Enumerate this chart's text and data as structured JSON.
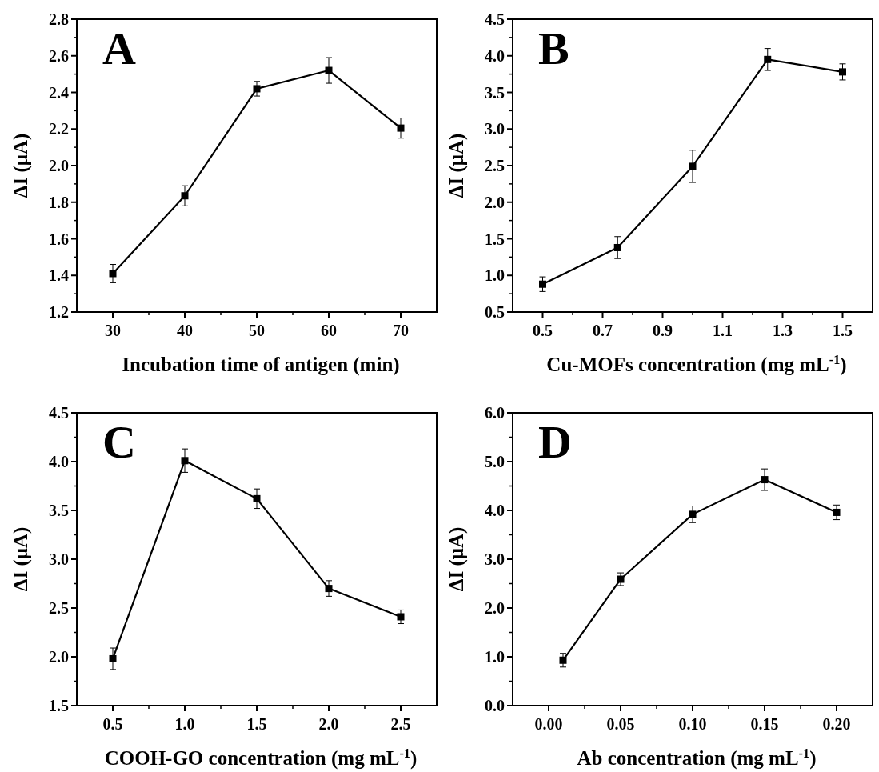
{
  "chart_data": [
    {
      "type": "line",
      "title": "A",
      "xlabel": "Incubation time of antigen (min)",
      "ylabel": "ΔI (μA)",
      "x": [
        30,
        40,
        50,
        60,
        70
      ],
      "series": [
        {
          "color": "#000000",
          "values": [
            1.41,
            1.835,
            2.42,
            2.52,
            2.205
          ],
          "errors": [
            0.05,
            0.055,
            0.04,
            0.07,
            0.055
          ]
        }
      ],
      "xlim": [
        25,
        75
      ],
      "ylim": [
        1.2,
        2.8
      ],
      "xticks": [
        30,
        40,
        50,
        60,
        70
      ],
      "yticks": [
        1.2,
        1.4,
        1.6,
        1.8,
        {
          "value": 2,
          "label": "2.0"
        },
        2.2,
        2.4,
        2.6,
        2.8
      ],
      "marker": "square",
      "line_style": "solid"
    },
    {
      "type": "line",
      "title": "B",
      "xlabel": "Cu-MOFs concentration (mg mL$^{-1}$)",
      "ylabel": "ΔI (μA)",
      "x": [
        0.5,
        0.75,
        1.0,
        1.25,
        1.5
      ],
      "series": [
        {
          "color": "#000000",
          "values": [
            0.88,
            1.38,
            2.49,
            3.95,
            3.78
          ],
          "errors": [
            0.1,
            0.15,
            0.22,
            0.15,
            0.11
          ]
        }
      ],
      "xlim": [
        0.4,
        1.6
      ],
      "ylim": [
        0.5,
        4.5
      ],
      "xticks": [
        0.5,
        0.7,
        0.9,
        1.1,
        1.3,
        1.5
      ],
      "yticks": [
        0.5,
        {
          "value": 1,
          "label": "1.0"
        },
        1.5,
        {
          "value": 2,
          "label": "2.0"
        },
        2.5,
        {
          "value": 3,
          "label": "3.0"
        },
        3.5,
        {
          "value": 4,
          "label": "4.0"
        },
        4.5
      ],
      "marker": "square",
      "line_style": "solid"
    },
    {
      "type": "line",
      "title": "C",
      "xlabel": "COOH-GO concentration (mg mL$^{-1}$)",
      "ylabel": "ΔI (μA)",
      "x": [
        0.5,
        1.0,
        1.5,
        2.0,
        2.5
      ],
      "series": [
        {
          "color": "#000000",
          "values": [
            1.98,
            4.01,
            3.62,
            2.7,
            2.41
          ],
          "errors": [
            0.11,
            0.12,
            0.1,
            0.08,
            0.07
          ]
        }
      ],
      "xlim": [
        0.25,
        2.75
      ],
      "ylim": [
        1.5,
        4.5
      ],
      "xticks": [
        0.5,
        {
          "value": 1,
          "label": "1.0"
        },
        1.5,
        {
          "value": 2,
          "label": "2.0"
        },
        2.5
      ],
      "yticks": [
        1.5,
        {
          "value": 2,
          "label": "2.0"
        },
        2.5,
        {
          "value": 3,
          "label": "3.0"
        },
        3.5,
        {
          "value": 4,
          "label": "4.0"
        },
        4.5
      ],
      "marker": "square",
      "line_style": "solid"
    },
    {
      "type": "line",
      "title": "D",
      "xlabel": "Ab concentration (mg mL$^{-1}$)",
      "ylabel": "ΔI (μA)",
      "x": [
        0.01,
        0.05,
        0.1,
        0.15,
        0.2
      ],
      "series": [
        {
          "color": "#000000",
          "values": [
            0.93,
            2.59,
            3.92,
            4.63,
            3.96
          ],
          "errors": [
            0.14,
            0.13,
            0.17,
            0.22,
            0.15
          ]
        }
      ],
      "xlim": [
        -0.025,
        0.225
      ],
      "ylim": [
        0,
        6
      ],
      "xticks": [
        {
          "value": 0,
          "label": "0.00"
        },
        0.05,
        {
          "value": 0.1,
          "label": "0.10"
        },
        0.15,
        {
          "value": 0.2,
          "label": "0.20"
        }
      ],
      "yticks": [
        {
          "value": 0,
          "label": "0.0"
        },
        {
          "value": 1,
          "label": "1.0"
        },
        {
          "value": 2,
          "label": "2.0"
        },
        {
          "value": 3,
          "label": "3.0"
        },
        {
          "value": 4,
          "label": "4.0"
        },
        {
          "value": 5,
          "label": "5.0"
        },
        {
          "value": 6,
          "label": "6.0"
        }
      ],
      "marker": "square",
      "line_style": "solid"
    }
  ]
}
